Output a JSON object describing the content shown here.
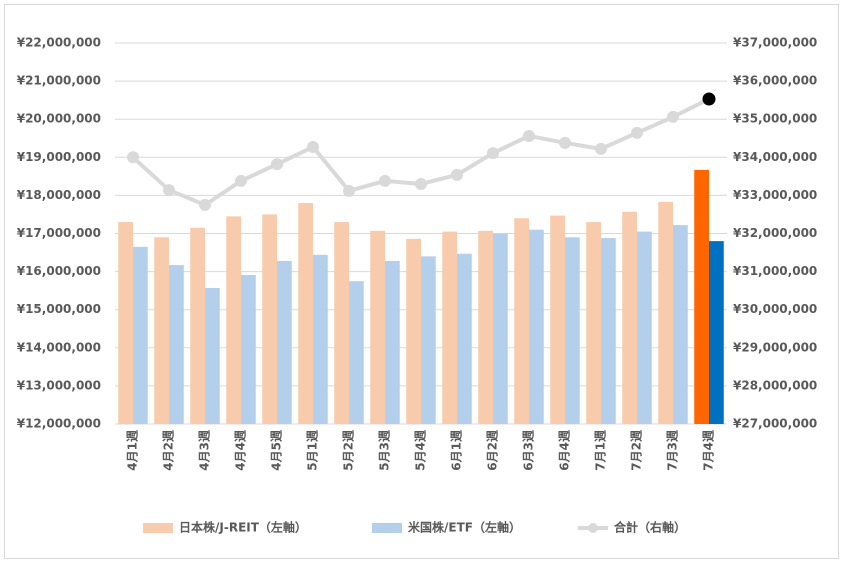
{
  "chart_data": {
    "type": "bar-line",
    "categories": [
      "4月1週",
      "4月2週",
      "4月3週",
      "4月4週",
      "4月5週",
      "5月1週",
      "5月2週",
      "5月3週",
      "5月4週",
      "6月1週",
      "6月2週",
      "6月3週",
      "6月4週",
      "7月1週",
      "7月2週",
      "7月3週",
      "7月4週"
    ],
    "series": [
      {
        "name": "日本株/J-REIT（左軸）",
        "type": "bar",
        "color": "#f8cbad",
        "last_color": "#ff6600",
        "values": [
          17300000,
          16900000,
          17150000,
          17450000,
          17500000,
          17800000,
          17300000,
          17070000,
          16860000,
          17050000,
          17070000,
          17400000,
          17470000,
          17300000,
          17570000,
          17830000,
          18670000
        ]
      },
      {
        "name": "米国株/ETF（左軸）",
        "type": "bar",
        "color": "#b4cfec",
        "last_color": "#0070c0",
        "values": [
          16650000,
          16170000,
          15570000,
          15910000,
          16280000,
          16440000,
          15750000,
          16280000,
          16400000,
          16470000,
          17000000,
          17100000,
          16900000,
          16880000,
          17050000,
          17220000,
          16800000
        ]
      },
      {
        "name": "合計（右軸）",
        "type": "line",
        "axis": "y2",
        "color": "#d9d9d9",
        "last_color": "#000000",
        "values": [
          34000000,
          33140000,
          32750000,
          33380000,
          33820000,
          34270000,
          33120000,
          33380000,
          33300000,
          33540000,
          34110000,
          34560000,
          34380000,
          34220000,
          34640000,
          35060000,
          35530000
        ]
      }
    ],
    "ylim": [
      12000000,
      22000000
    ],
    "yticks": [
      {
        "value": 12000000,
        "label": "¥12,000,000"
      },
      {
        "value": 13000000,
        "label": "¥13,000,000"
      },
      {
        "value": 14000000,
        "label": "¥14,000,000"
      },
      {
        "value": 15000000,
        "label": "¥15,000,000"
      },
      {
        "value": 16000000,
        "label": "¥16,000,000"
      },
      {
        "value": 17000000,
        "label": "¥17,000,000"
      },
      {
        "value": 18000000,
        "label": "¥18,000,000"
      },
      {
        "value": 19000000,
        "label": "¥19,000,000"
      },
      {
        "value": 20000000,
        "label": "¥20,000,000"
      },
      {
        "value": 21000000,
        "label": "¥21,000,000"
      },
      {
        "value": 22000000,
        "label": "¥22,000,000"
      }
    ],
    "y2lim": [
      27000000,
      37000000
    ],
    "y2ticks": [
      {
        "value": 27000000,
        "label": "¥27,000,000"
      },
      {
        "value": 28000000,
        "label": "¥28,000,000"
      },
      {
        "value": 29000000,
        "label": "¥29,000,000"
      },
      {
        "value": 30000000,
        "label": "¥30,000,000"
      },
      {
        "value": 31000000,
        "label": "¥31,000,000"
      },
      {
        "value": 32000000,
        "label": "¥32,000,000"
      },
      {
        "value": 33000000,
        "label": "¥33,000,000"
      },
      {
        "value": 34000000,
        "label": "¥34,000,000"
      },
      {
        "value": 35000000,
        "label": "¥35,000,000"
      },
      {
        "value": 36000000,
        "label": "¥36,000,000"
      },
      {
        "value": 37000000,
        "label": "¥37,000,000"
      }
    ],
    "grid": true,
    "legend": "bottom"
  }
}
